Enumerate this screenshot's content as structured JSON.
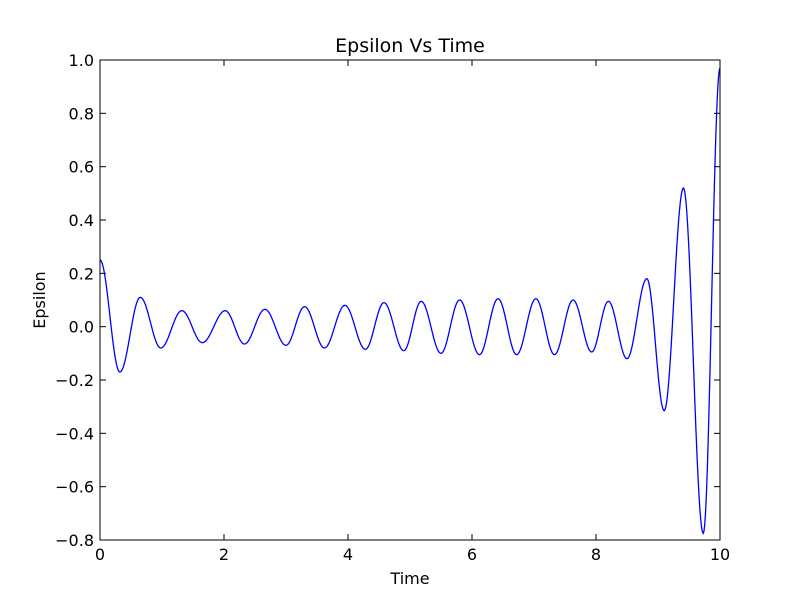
{
  "chart_data": {
    "type": "line",
    "title": "Epsilon Vs Time",
    "xlabel": "Time",
    "ylabel": "Epsilon",
    "xlim": [
      0,
      10
    ],
    "ylim": [
      -0.8,
      1.0
    ],
    "grid": false,
    "x_ticks": [
      0,
      2,
      4,
      6,
      8,
      10
    ],
    "x_tick_labels": [
      "0",
      "2",
      "4",
      "6",
      "8",
      "10"
    ],
    "y_ticks": [
      -0.8,
      -0.6,
      -0.4,
      -0.2,
      0.0,
      0.2,
      0.4,
      0.6,
      0.8,
      1.0
    ],
    "y_tick_labels": [
      "−0.8",
      "−0.6",
      "−0.4",
      "−0.2",
      "0.0",
      "0.2",
      "0.4",
      "0.6",
      "0.8",
      "1.0"
    ],
    "series": [
      {
        "color": "#0000ff",
        "x": [
          0.0,
          0.32,
          0.65,
          0.98,
          1.32,
          1.65,
          2.02,
          2.33,
          2.66,
          3.0,
          3.3,
          3.62,
          3.95,
          4.28,
          4.58,
          4.9,
          5.18,
          5.5,
          5.8,
          6.12,
          6.42,
          6.72,
          7.03,
          7.33,
          7.63,
          7.93,
          8.2,
          8.5,
          8.82,
          9.1,
          9.41,
          9.73,
          10.0
        ],
        "y": [
          0.25,
          -0.17,
          0.11,
          -0.08,
          0.06,
          -0.06,
          0.06,
          -0.065,
          0.065,
          -0.07,
          0.075,
          -0.08,
          0.08,
          -0.085,
          0.09,
          -0.09,
          0.095,
          -0.1,
          0.1,
          -0.105,
          0.105,
          -0.105,
          0.105,
          -0.105,
          0.1,
          -0.095,
          0.095,
          -0.12,
          0.18,
          -0.315,
          0.52,
          -0.775,
          0.97
        ]
      }
    ]
  }
}
